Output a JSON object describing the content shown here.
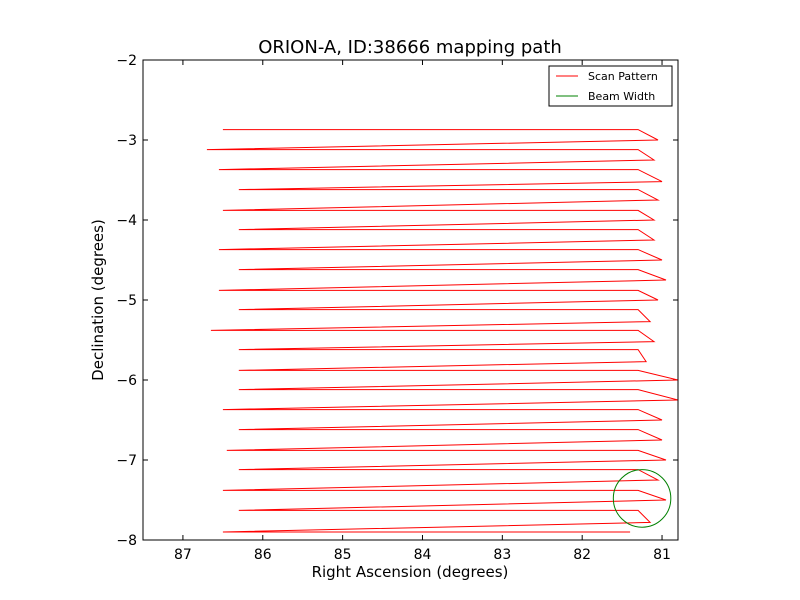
{
  "chart_data": {
    "type": "line",
    "title": "ORION-A, ID:38666 mapping path",
    "xlabel": "Right Ascension (degrees)",
    "ylabel": "Declination (degrees)",
    "xlim": [
      87.5,
      80.8
    ],
    "ylim": [
      -8,
      -2
    ],
    "x_ticks": [
      87,
      86,
      85,
      84,
      83,
      82,
      81
    ],
    "y_ticks": [
      -2,
      -3,
      -4,
      -5,
      -6,
      -7,
      -8
    ],
    "x_tick_labels": [
      "87",
      "86",
      "85",
      "84",
      "83",
      "82",
      "81"
    ],
    "y_tick_labels": [
      "−2",
      "−3",
      "−4",
      "−5",
      "−6",
      "−7",
      "−8"
    ],
    "grid": false,
    "legend": {
      "position": "top-right",
      "entries": [
        "Scan Pattern",
        "Beam Width"
      ]
    },
    "series": [
      {
        "name": "Scan Pattern",
        "color": "#ff0000",
        "points": [
          [
            86.5,
            -2.87
          ],
          [
            81.3,
            -2.87
          ],
          [
            81.05,
            -3.0
          ],
          [
            86.7,
            -3.12
          ],
          [
            81.3,
            -3.12
          ],
          [
            81.1,
            -3.25
          ],
          [
            86.55,
            -3.37
          ],
          [
            81.3,
            -3.37
          ],
          [
            81.0,
            -3.52
          ],
          [
            86.3,
            -3.62
          ],
          [
            81.3,
            -3.62
          ],
          [
            81.05,
            -3.75
          ],
          [
            86.5,
            -3.88
          ],
          [
            81.3,
            -3.88
          ],
          [
            81.1,
            -4.0
          ],
          [
            86.3,
            -4.12
          ],
          [
            81.3,
            -4.12
          ],
          [
            81.1,
            -4.25
          ],
          [
            86.55,
            -4.37
          ],
          [
            81.3,
            -4.37
          ],
          [
            81.0,
            -4.5
          ],
          [
            86.3,
            -4.62
          ],
          [
            81.3,
            -4.62
          ],
          [
            80.95,
            -4.75
          ],
          [
            86.55,
            -4.88
          ],
          [
            81.3,
            -4.88
          ],
          [
            81.05,
            -5.0
          ],
          [
            86.3,
            -5.12
          ],
          [
            81.3,
            -5.12
          ],
          [
            81.15,
            -5.27
          ],
          [
            86.65,
            -5.38
          ],
          [
            81.3,
            -5.38
          ],
          [
            81.1,
            -5.52
          ],
          [
            86.3,
            -5.62
          ],
          [
            81.3,
            -5.62
          ],
          [
            81.2,
            -5.77
          ],
          [
            86.3,
            -5.88
          ],
          [
            81.3,
            -5.88
          ],
          [
            80.8,
            -6.0
          ],
          [
            86.3,
            -6.12
          ],
          [
            81.3,
            -6.12
          ],
          [
            80.8,
            -6.25
          ],
          [
            86.5,
            -6.37
          ],
          [
            81.3,
            -6.37
          ],
          [
            81.0,
            -6.5
          ],
          [
            86.3,
            -6.62
          ],
          [
            81.3,
            -6.62
          ],
          [
            81.0,
            -6.75
          ],
          [
            86.45,
            -6.88
          ],
          [
            81.3,
            -6.88
          ],
          [
            80.95,
            -7.0
          ],
          [
            86.3,
            -7.12
          ],
          [
            81.3,
            -7.12
          ],
          [
            81.05,
            -7.25
          ],
          [
            86.5,
            -7.38
          ],
          [
            81.3,
            -7.38
          ],
          [
            80.95,
            -7.5
          ],
          [
            86.3,
            -7.63
          ],
          [
            81.3,
            -7.63
          ],
          [
            81.15,
            -7.78
          ],
          [
            86.5,
            -7.9
          ],
          [
            81.4,
            -7.9
          ]
        ]
      },
      {
        "name": "Beam Width",
        "color": "#008000",
        "shape": "circle",
        "center": [
          81.25,
          -7.48
        ],
        "radius": 0.36
      }
    ]
  }
}
